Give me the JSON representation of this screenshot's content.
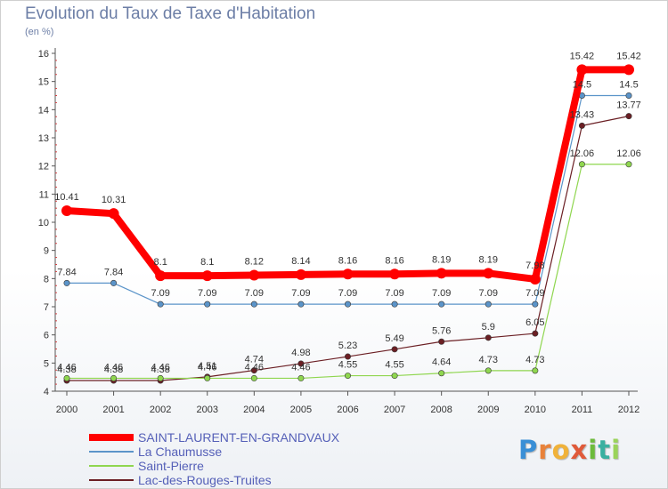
{
  "title": "Evolution du Taux de Taxe d'Habitation",
  "subtitle": "(en %)",
  "brand": {
    "letters": [
      "P",
      "r",
      "o",
      "x",
      "i",
      "t",
      "i"
    ],
    "colors": [
      "#3a8fd6",
      "#e8823a",
      "#f0b23a",
      "#e05a3a",
      "#6dbb3c",
      "#3ab0a0",
      "#9ad35a"
    ]
  },
  "chart_data": {
    "type": "line",
    "title": "Evolution du Taux de Taxe d'Habitation",
    "ylabel": "(en %)",
    "xlabel": "",
    "categories": [
      "2000",
      "2001",
      "2002",
      "2003",
      "2004",
      "2005",
      "2006",
      "2007",
      "2008",
      "2009",
      "2010",
      "2011",
      "2012"
    ],
    "yticks": [
      "4",
      "5",
      "6",
      "7",
      "8",
      "9",
      "10",
      "11",
      "12",
      "13",
      "14",
      "15",
      "16"
    ],
    "ylim": [
      4,
      16
    ],
    "grid": false,
    "legend": "bottom-left",
    "series": [
      {
        "name": "SAINT-LAURENT-EN-GRANDVAUX",
        "color": "#ff0000",
        "values": [
          10.41,
          10.31,
          8.1,
          8.1,
          8.12,
          8.14,
          8.16,
          8.16,
          8.19,
          8.19,
          7.98,
          15.42,
          15.42
        ],
        "labels": [
          "10.41",
          "10.31",
          "8.1",
          "8.1",
          "8.12",
          "8.14",
          "8.16",
          "8.16",
          "8.19",
          "8.19",
          "7.98",
          "15.42",
          "15.42"
        ]
      },
      {
        "name": "La Chaumusse",
        "color": "#5b94c9",
        "values": [
          7.84,
          7.84,
          7.09,
          7.09,
          7.09,
          7.09,
          7.09,
          7.09,
          7.09,
          7.09,
          7.09,
          14.5,
          14.5
        ],
        "labels": [
          "7.84",
          "7.84",
          "7.09",
          "7.09",
          "7.09",
          "7.09",
          "7.09",
          "7.09",
          "7.09",
          "7.09",
          "7.09",
          "14.5",
          "14.5"
        ]
      },
      {
        "name": "Saint-Pierre",
        "color": "#8fd64f",
        "values": [
          4.46,
          4.46,
          4.46,
          4.46,
          4.46,
          4.46,
          4.55,
          4.55,
          4.64,
          4.73,
          4.73,
          12.06,
          12.06
        ],
        "labels": [
          "4.46",
          "4.46",
          "4.46",
          "4.46",
          "4.46",
          "4.46",
          "4.55",
          "4.55",
          "4.64",
          "4.73",
          "4.73",
          "12.06",
          "12.06"
        ]
      },
      {
        "name": "Lac-des-Rouges-Truites",
        "color": "#6b1f24",
        "values": [
          4.38,
          4.38,
          4.38,
          4.51,
          4.74,
          4.98,
          5.23,
          5.49,
          5.76,
          5.9,
          6.05,
          13.43,
          13.77
        ],
        "labels": [
          "4.38",
          "4.38",
          "4.38",
          "4.51",
          "4.74",
          "4.98",
          "5.23",
          "5.49",
          "5.76",
          "5.9",
          "6.05",
          "13.43",
          "13.77"
        ]
      }
    ]
  }
}
